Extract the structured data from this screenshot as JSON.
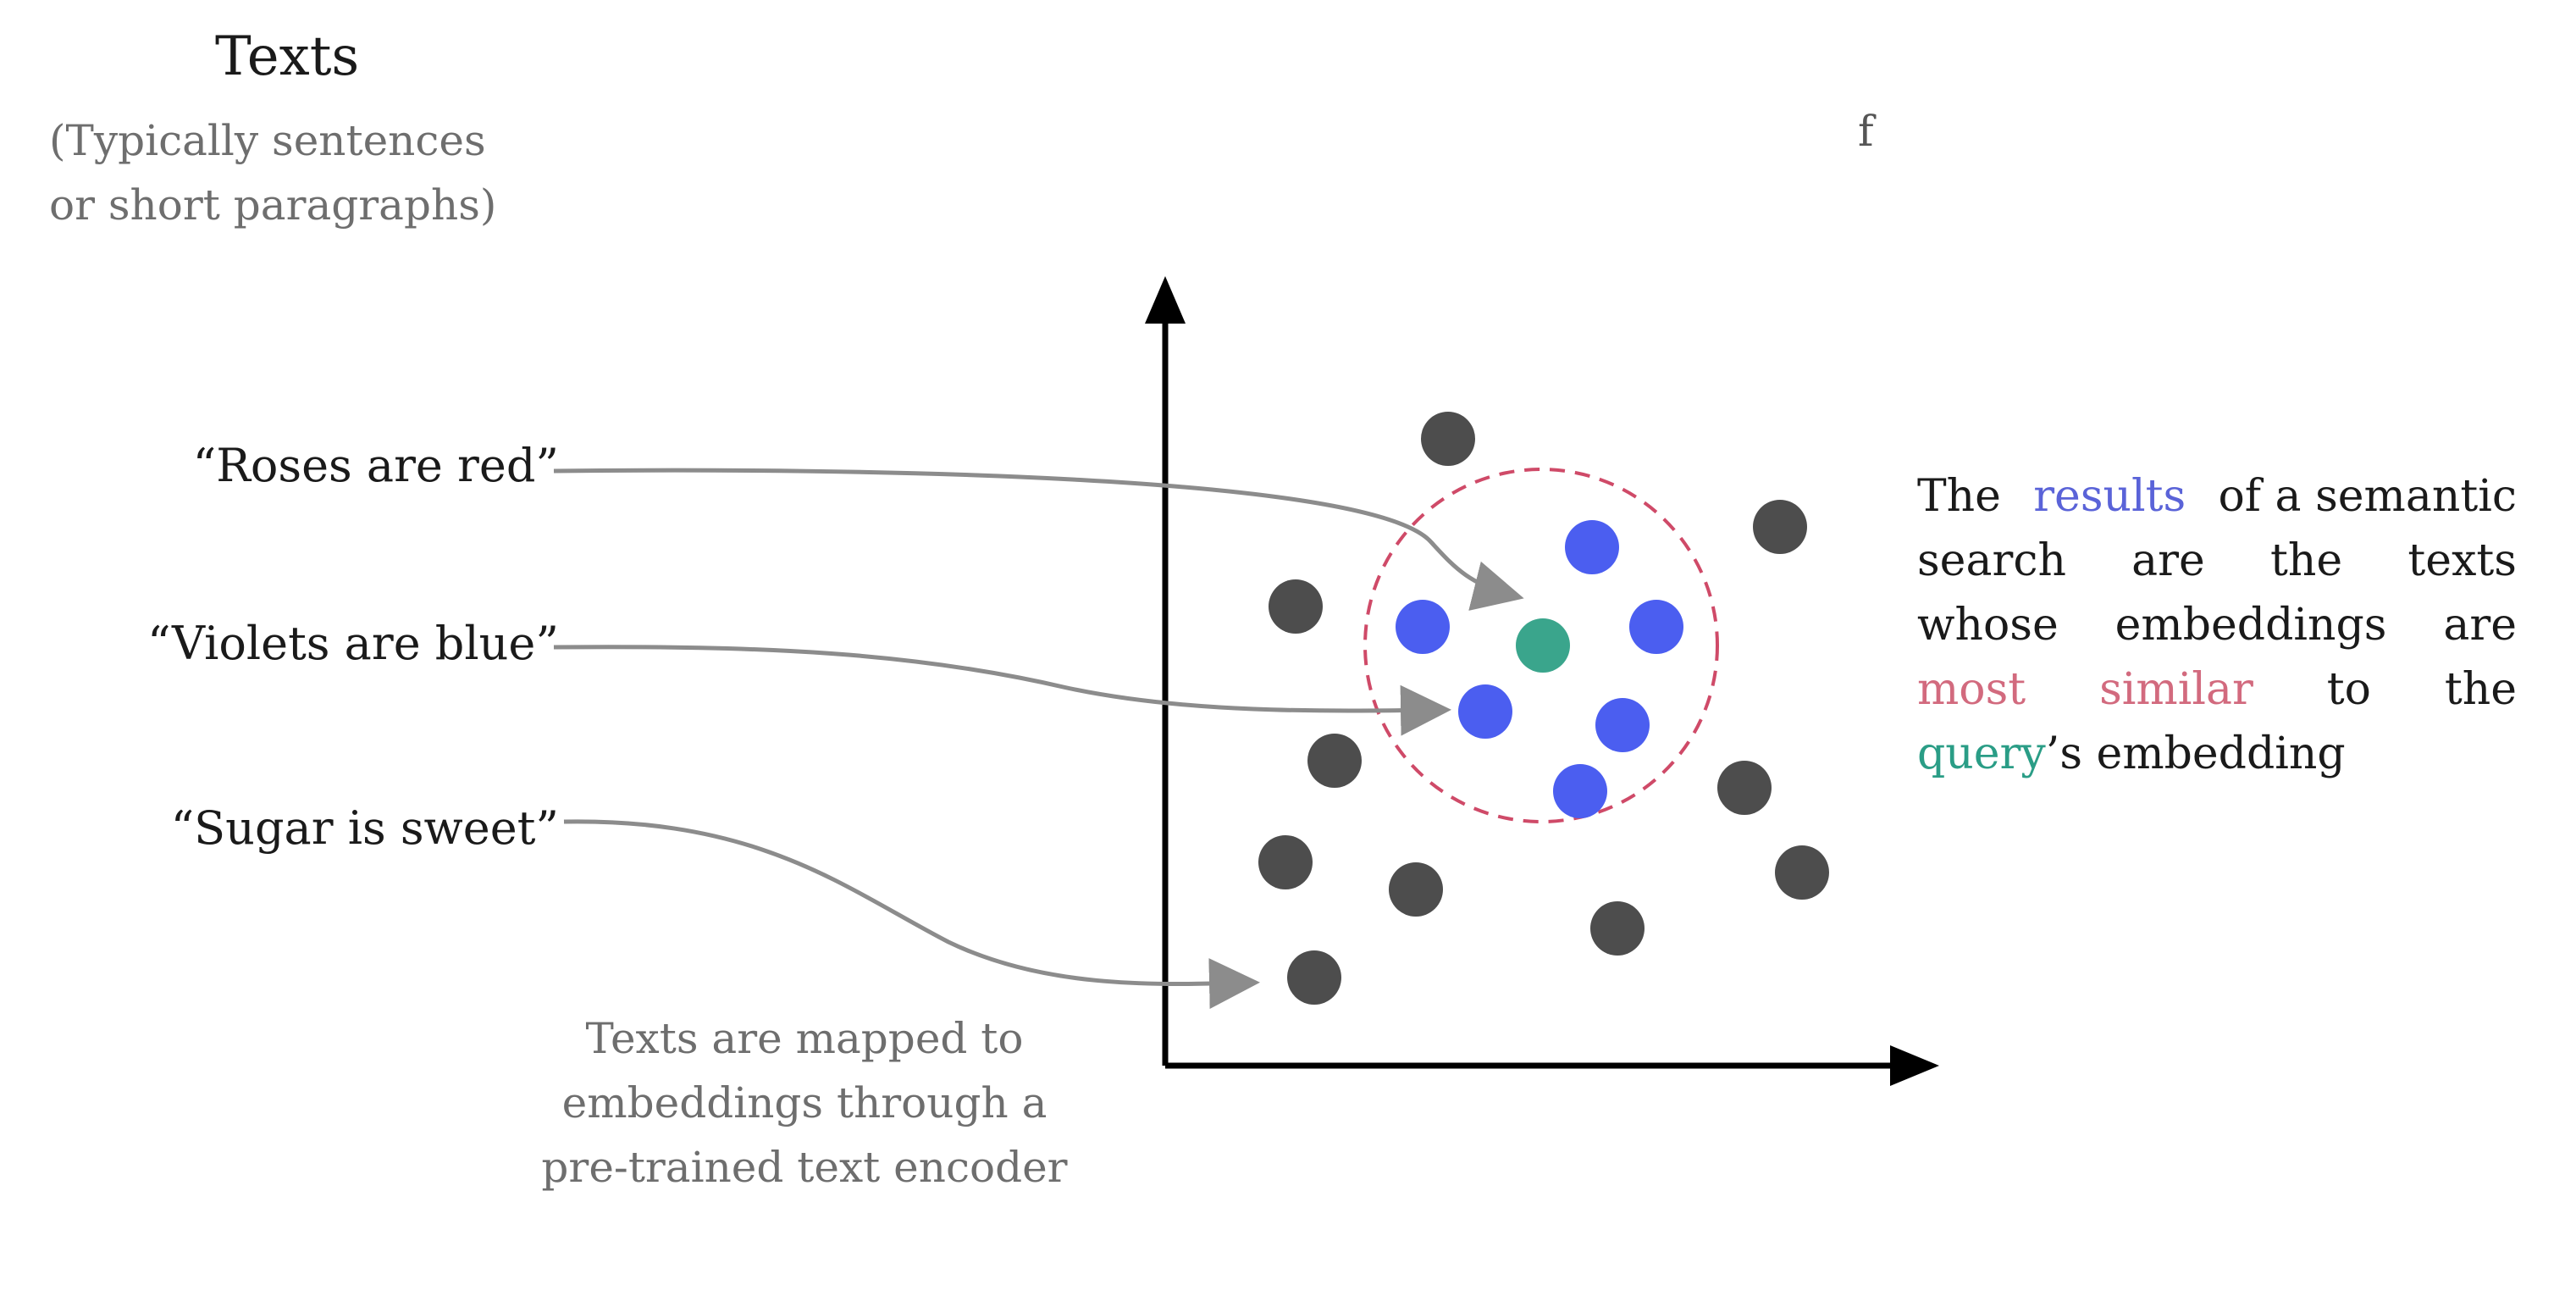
{
  "heading": {
    "title": "Texts",
    "subtitle_line1": "(Typically sentences",
    "subtitle_line2": "or short paragraphs)"
  },
  "stray_label": "f",
  "examples": [
    "“Roses are red”",
    "“Violets are blue”",
    "“Sugar is sweet”"
  ],
  "caption": {
    "line1": "Texts are mapped to",
    "line2": "embeddings through a",
    "line3": "pre-trained text encoder"
  },
  "explanation": {
    "w_the1": "The",
    "w_results": "results",
    "w_of_a_semantic": "of a semantic",
    "w_search": "search",
    "w_are1": "are",
    "w_the2": "the",
    "w_texts": "texts",
    "w_whose": "whose",
    "w_embeddings": "embeddings",
    "w_are2": "are",
    "w_most": "most",
    "w_similar": "similar",
    "w_to": "to",
    "w_the3": "the",
    "w_query": "query",
    "w_suffix": "’s embedding"
  },
  "colors": {
    "background_points": "#4d4d4d",
    "similar_points": "#4b5ef0",
    "query_point": "#3aa58c",
    "similarity_circle": "#cf4a68",
    "arrows": "#8c8c8c",
    "axes": "#000000"
  }
}
